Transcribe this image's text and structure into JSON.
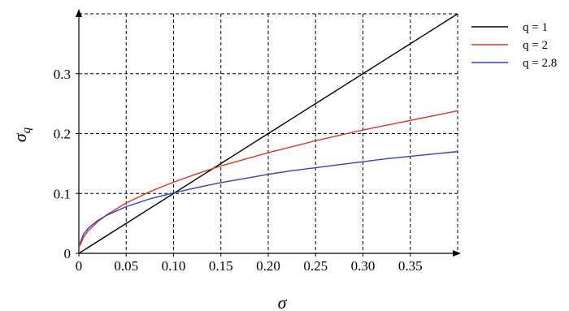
{
  "chart_data": {
    "type": "line",
    "title": "",
    "xlabel": "σ",
    "ylabel": "σ",
    "ylabel_subscript": "q",
    "xlim": [
      0,
      0.4
    ],
    "ylim": [
      0,
      0.4
    ],
    "grid": true,
    "legend_position": "right",
    "x_ticks": [
      0,
      0.05,
      0.1,
      0.15,
      0.2,
      0.25,
      0.3,
      0.35
    ],
    "x_tick_labels": [
      "0",
      "0.05",
      "0.10",
      "0.15",
      "0.20",
      "0.25",
      "0.30",
      "0.35"
    ],
    "y_ticks": [
      0,
      0.1,
      0.2,
      0.3
    ],
    "y_tick_labels": [
      "0",
      "0.1",
      "0.2",
      "0.3"
    ],
    "x": [
      0.001,
      0.005,
      0.01,
      0.02,
      0.03,
      0.05,
      0.075,
      0.1,
      0.125,
      0.15,
      0.175,
      0.2,
      0.225,
      0.25,
      0.275,
      0.3,
      0.325,
      0.35,
      0.375,
      0.4
    ],
    "series": [
      {
        "name": "q = 1",
        "color": "#000000",
        "values": [
          0.001,
          0.005,
          0.01,
          0.02,
          0.03,
          0.05,
          0.075,
          0.1,
          0.125,
          0.15,
          0.175,
          0.2,
          0.225,
          0.25,
          0.275,
          0.3,
          0.325,
          0.35,
          0.375,
          0.4
        ]
      },
      {
        "name": "q = 2",
        "color": "#e8321e",
        "values": [
          0.012,
          0.027,
          0.038,
          0.053,
          0.065,
          0.084,
          0.103,
          0.119,
          0.133,
          0.146,
          0.157,
          0.168,
          0.178,
          0.188,
          0.197,
          0.206,
          0.214,
          0.222,
          0.23,
          0.238
        ]
      },
      {
        "name": "q = 2.8",
        "color": "#2d3fd0",
        "values": [
          0.016,
          0.032,
          0.042,
          0.055,
          0.064,
          0.078,
          0.091,
          0.101,
          0.11,
          0.118,
          0.125,
          0.132,
          0.138,
          0.143,
          0.148,
          0.153,
          0.158,
          0.162,
          0.166,
          0.17
        ]
      }
    ]
  }
}
